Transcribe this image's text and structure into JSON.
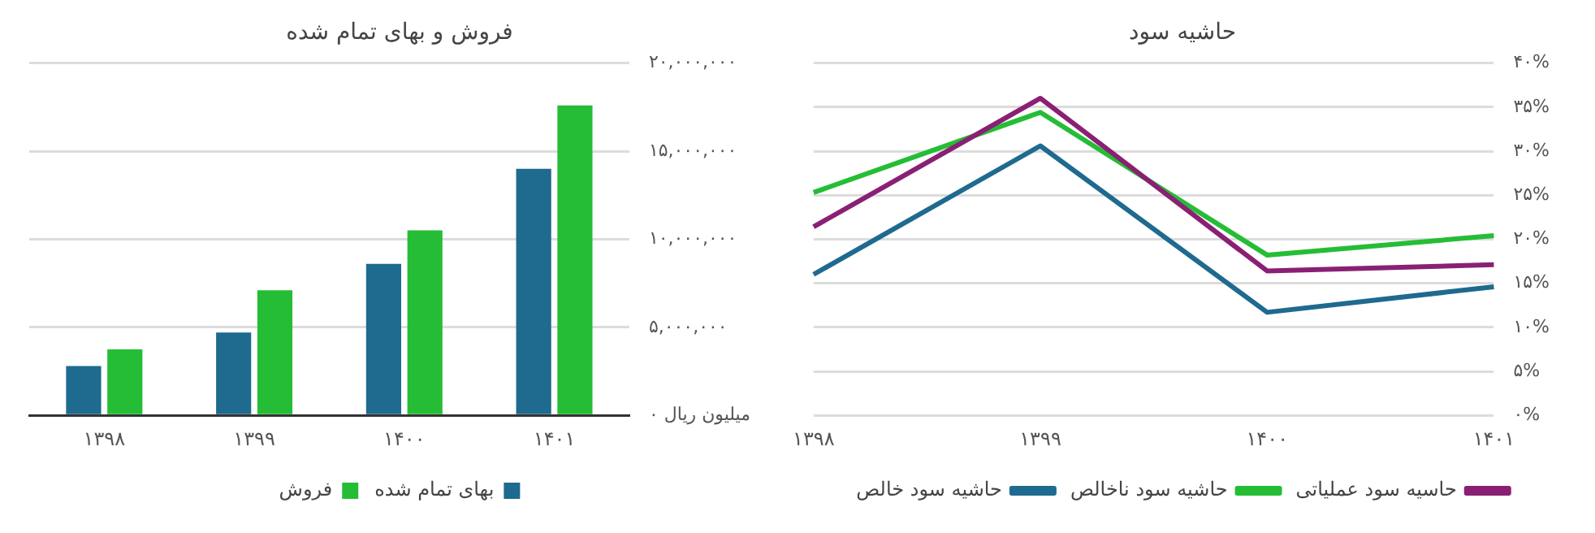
{
  "chart_data": [
    {
      "type": "bar",
      "title": "فروش و بهای تمام شده",
      "categories": [
        "۱۳۹۸",
        "۱۳۹۹",
        "۱۴۰۰",
        "۱۴۰۱"
      ],
      "series": [
        {
          "name": "بهای تمام شده",
          "color": "#1f6a8f",
          "values": [
            2800000,
            4700000,
            8600000,
            14000000
          ]
        },
        {
          "name": "فروش",
          "color": "#25bd35",
          "values": [
            3750000,
            7100000,
            10500000,
            17600000
          ]
        }
      ],
      "ylim": [
        0,
        20000000
      ],
      "yticks": [
        {
          "value": 0,
          "label": "۰ میلیون ریال"
        },
        {
          "value": 5000000,
          "label": "۵,۰۰۰,۰۰۰"
        },
        {
          "value": 10000000,
          "label": "۱۰,۰۰۰,۰۰۰"
        },
        {
          "value": 15000000,
          "label": "۱۵,۰۰۰,۰۰۰"
        },
        {
          "value": 20000000,
          "label": "۲۰,۰۰۰,۰۰۰"
        }
      ],
      "grid": "y",
      "legend": "bottom"
    },
    {
      "type": "line",
      "title": "حاشیه سود",
      "categories": [
        "۱۳۹۸",
        "۱۳۹۹",
        "۱۴۰۰",
        "۱۴۰۱"
      ],
      "series": [
        {
          "name": "حاسیه سود عملیاتی",
          "color": "#8a2073",
          "values": [
            21.4,
            36.0,
            16.4,
            17.1
          ]
        },
        {
          "name": "حاشیه سود ناخالص",
          "color": "#25bd35",
          "values": [
            25.3,
            34.4,
            18.2,
            20.4
          ]
        },
        {
          "name": "حاشیه سود خالص",
          "color": "#1f6a8f",
          "values": [
            16.0,
            30.6,
            11.7,
            14.6
          ]
        }
      ],
      "ylim": [
        0,
        40
      ],
      "yticks": [
        {
          "value": 0,
          "label": "۰%"
        },
        {
          "value": 5,
          "label": "۵%"
        },
        {
          "value": 10,
          "label": "۱۰%"
        },
        {
          "value": 15,
          "label": "۱۵%"
        },
        {
          "value": 20,
          "label": "۲۰%"
        },
        {
          "value": 25,
          "label": "۲۵%"
        },
        {
          "value": 30,
          "label": "۳۰%"
        },
        {
          "value": 35,
          "label": "۳۵%"
        },
        {
          "value": 40,
          "label": "۴۰%"
        }
      ],
      "grid": "y",
      "legend": "bottom",
      "marker": "none"
    }
  ]
}
